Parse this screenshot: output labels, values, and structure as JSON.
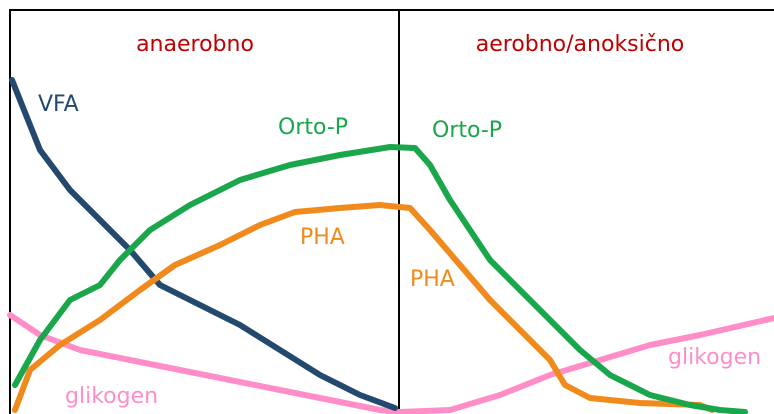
{
  "phases": {
    "anaerobic": "anaerobno",
    "aerobic": "aerobno/anoksično"
  },
  "labels": {
    "vfa": "VFA",
    "orto_p_left": "Orto-P",
    "orto_p_right": "Orto-P",
    "pha_left": "PHA",
    "pha_right": "PHA",
    "glikogen_left": "glikogen",
    "glikogen_right": "glikogen"
  }
}
